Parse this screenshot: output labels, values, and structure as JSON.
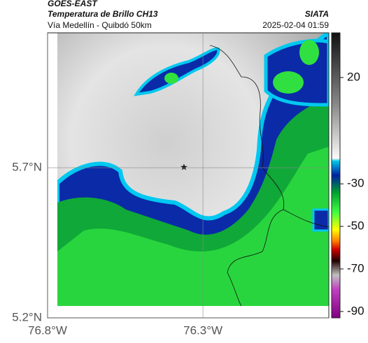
{
  "header": {
    "source": "GOES-EAST",
    "title": "Temperatura de Brillo CH13",
    "subtitle": "Vía Medellín - Quibdó 50km",
    "brand": "SIATA",
    "timestamp": "2025-02-04 01:59"
  },
  "map": {
    "xlim": [
      -76.8,
      -75.895
    ],
    "ylim": [
      5.2,
      6.149
    ],
    "xticks": [
      {
        "value": -76.8,
        "label": "76.8°W"
      },
      {
        "value": -76.3,
        "label": "76.3°W"
      }
    ],
    "yticks": [
      {
        "value": 5.7,
        "label": "5.7°N"
      },
      {
        "value": 5.2,
        "label": "5.2°N"
      }
    ]
  },
  "colorbar": {
    "lim": [
      41,
      -93
    ],
    "ticks": [
      20,
      -30,
      -50,
      -70,
      -90
    ]
  }
}
